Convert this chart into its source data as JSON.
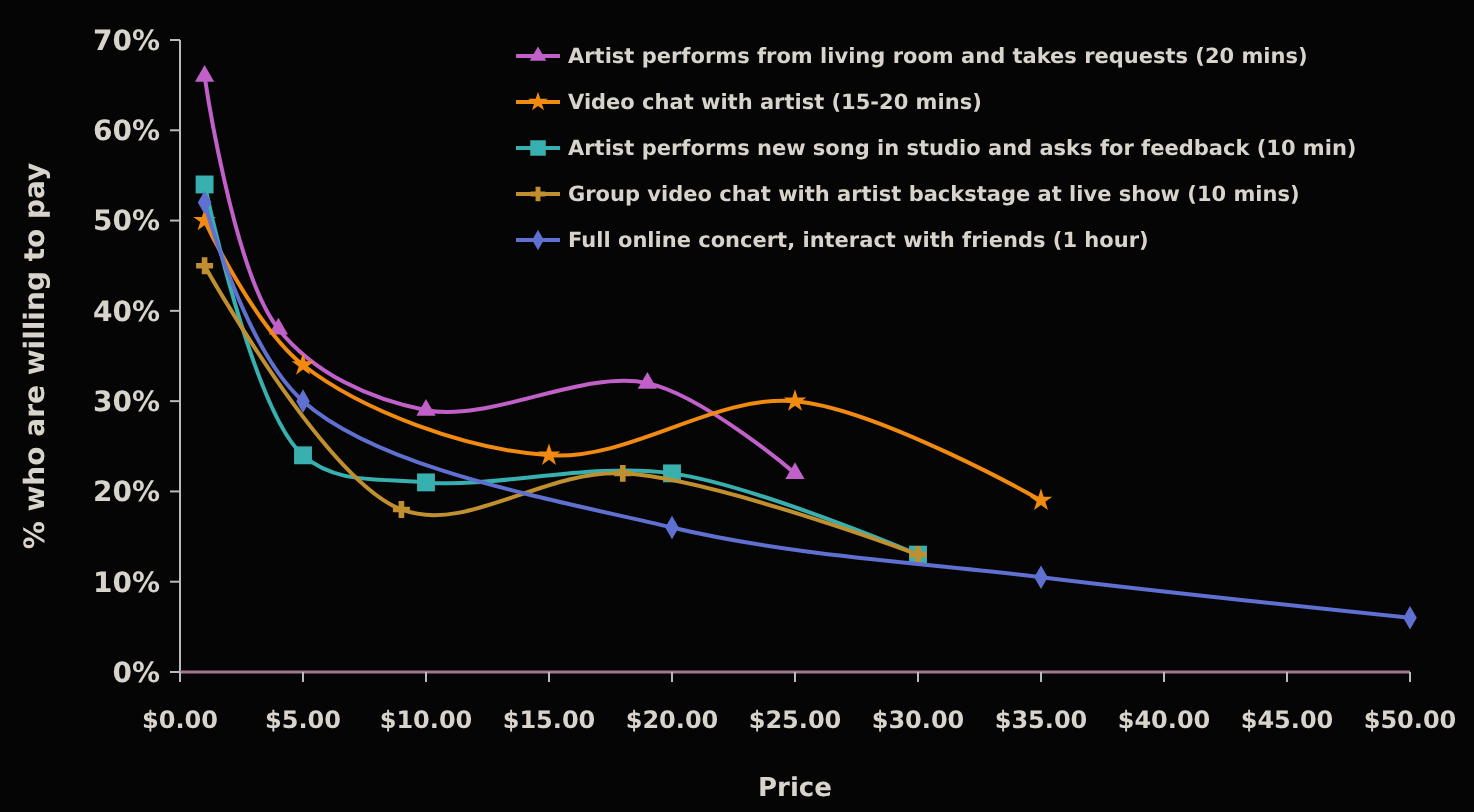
{
  "chart_data": {
    "type": "line",
    "xlabel": "Price",
    "ylabel": "% who are willing to pay",
    "xlim": [
      0,
      50
    ],
    "ylim": [
      0,
      70
    ],
    "xticks": [
      {
        "value": 0,
        "label": "$0.00"
      },
      {
        "value": 5,
        "label": "$5.00"
      },
      {
        "value": 10,
        "label": "$10.00"
      },
      {
        "value": 15,
        "label": "$15.00"
      },
      {
        "value": 20,
        "label": "$20.00"
      },
      {
        "value": 25,
        "label": "$25.00"
      },
      {
        "value": 30,
        "label": "$30.00"
      },
      {
        "value": 35,
        "label": "$35.00"
      },
      {
        "value": 40,
        "label": "$40.00"
      },
      {
        "value": 45,
        "label": "$45.00"
      },
      {
        "value": 50,
        "label": "$50.00"
      }
    ],
    "yticks": [
      {
        "value": 0,
        "label": "0%"
      },
      {
        "value": 10,
        "label": "10%"
      },
      {
        "value": 20,
        "label": "20%"
      },
      {
        "value": 30,
        "label": "30%"
      },
      {
        "value": 40,
        "label": "40%"
      },
      {
        "value": 50,
        "label": "50%"
      },
      {
        "value": 60,
        "label": "60%"
      },
      {
        "value": 70,
        "label": "70%"
      }
    ],
    "grid": false,
    "legend": "top right",
    "line_style": "solid",
    "series": [
      {
        "name": "Artist performs from living room and takes requests (20 mins)",
        "color": "#c060c8",
        "marker": "triangle",
        "x": [
          1,
          4,
          10,
          19,
          25
        ],
        "values": [
          66,
          38,
          29,
          32,
          22
        ]
      },
      {
        "name": "Video chat with artist (15-20 mins)",
        "color": "#f08a10",
        "marker": "star",
        "x": [
          1,
          5,
          15,
          25,
          35
        ],
        "values": [
          50,
          34,
          24,
          30,
          19
        ]
      },
      {
        "name": "Artist performs new song in studio and asks for feedback (10 min)",
        "color": "#38b0b0",
        "marker": "square",
        "x": [
          1,
          5,
          10,
          20,
          30
        ],
        "values": [
          54,
          24,
          21,
          22,
          13
        ]
      },
      {
        "name": "Group video chat with artist backstage at live show (10 mins)",
        "color": "#c09030",
        "marker": "cross",
        "x": [
          1,
          9,
          18,
          30
        ],
        "values": [
          45,
          18,
          22,
          13
        ]
      },
      {
        "name": "Full online concert, interact with friends (1 hour)",
        "color": "#6070d0",
        "marker": "diamond",
        "x": [
          1,
          5,
          20,
          35,
          50
        ],
        "values": [
          52,
          30,
          16,
          10.5,
          6
        ]
      }
    ]
  }
}
